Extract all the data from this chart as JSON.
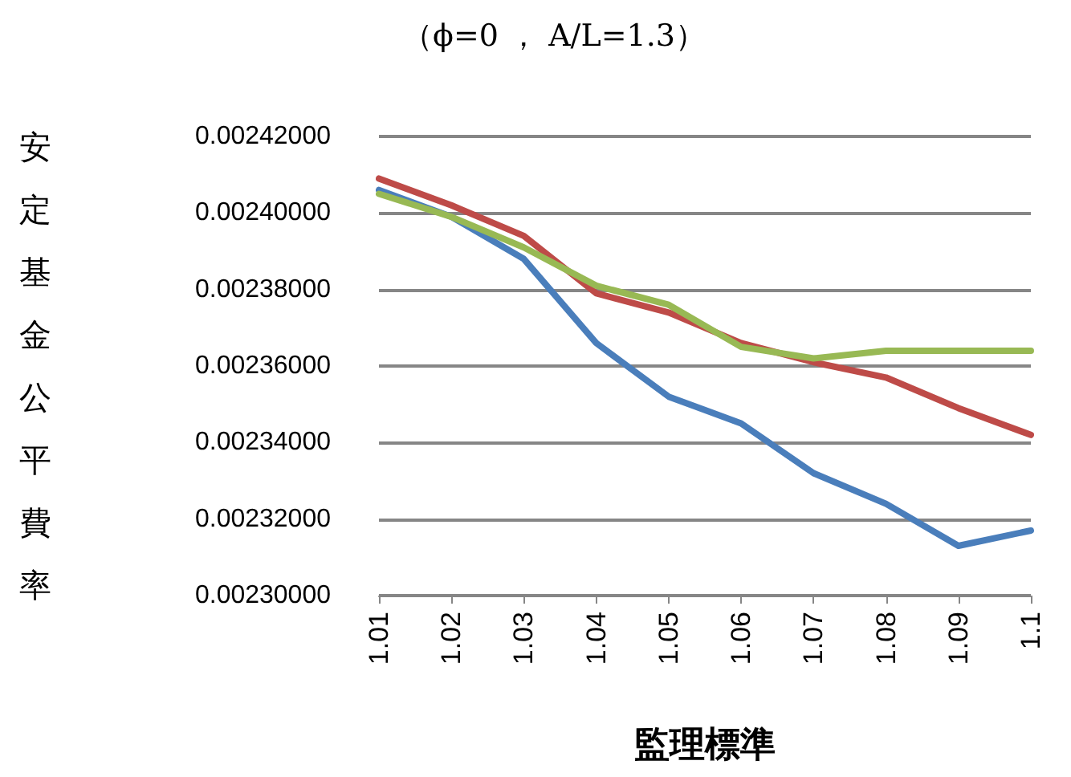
{
  "chart_data": {
    "type": "line",
    "title": "（ϕ=0 ， A/L=1.3）",
    "xlabel": "監理標準",
    "ylabel": "安定基金公平費率",
    "categories": [
      "1.01",
      "1.02",
      "1.03",
      "1.04",
      "1.05",
      "1.06",
      "1.07",
      "1.08",
      "1.09",
      "1.1"
    ],
    "series": [
      {
        "color": "#4a7ebb",
        "values": [
          0.002406,
          0.002399,
          0.002388,
          0.002366,
          0.002352,
          0.002345,
          0.002332,
          0.002324,
          0.002313,
          0.002317
        ]
      },
      {
        "color": "#be4b48",
        "values": [
          0.002409,
          0.002402,
          0.002394,
          0.002379,
          0.002374,
          0.002366,
          0.002361,
          0.002357,
          0.002349,
          0.002342
        ]
      },
      {
        "color": "#98b954",
        "values": [
          0.002405,
          0.002399,
          0.002391,
          0.002381,
          0.002376,
          0.002365,
          0.002362,
          0.002364,
          0.002364,
          0.002364
        ]
      }
    ],
    "ylim": [
      0.0023,
      0.00242
    ],
    "yticks": [
      {
        "value": 0.0023,
        "label": "0.00230000"
      },
      {
        "value": 0.00232,
        "label": "0.00232000"
      },
      {
        "value": 0.00234,
        "label": "0.00234000"
      },
      {
        "value": 0.00236,
        "label": "0.00236000"
      },
      {
        "value": 0.00238,
        "label": "0.00238000"
      },
      {
        "value": 0.0024,
        "label": "0.00240000"
      },
      {
        "value": 0.00242,
        "label": "0.00242000"
      }
    ],
    "grid": "y",
    "marker": "none",
    "line_style": "solid"
  }
}
